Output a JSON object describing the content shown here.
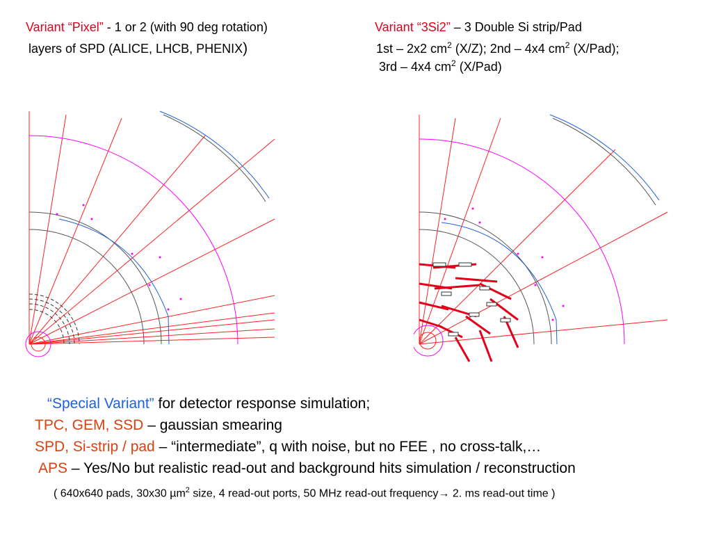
{
  "left_title": {
    "variant": "Variant “Pixel”",
    "rest": " - 1 or 2 (with 90 deg rotation)",
    "line2": "layers of SPD (ALICE, LHCB, PHENIX",
    "line2_end": ")"
  },
  "right_title": {
    "variant": "Variant “3Si2”",
    "rest": " – 3 Double Si strip/Pad",
    "line2a": "1st – 2x2 cm",
    "sup": "2",
    "line2b": " (X/Z);  2nd – 4x4 cm",
    "line2c": " (X/Pad);",
    "line3a": "3rd – 4x4 cm",
    "line3b": " (X/Pad)"
  },
  "bottom": {
    "l1_colored": "“Special Variant”",
    "l1_rest": " for detector response simulation;",
    "l2_colored": "TPC, GEM, SSD",
    "l2_rest": " – gaussian smearing",
    "l3_colored": "SPD, Si-strip / pad",
    "l3_rest": " – “intermediate”, q with noise, but no FEE , no cross-talk,…",
    "l4_colored": "APS",
    "l4_rest": " – Yes/No but realistic read-out and background hits simulation / reconstruction",
    "l5_a": "( 640x640 pads, 30x30 µm",
    "l5_sup": "2",
    "l5_b": " size, 4 read-out ports, 50 MHz read-out frequency",
    "l5_arrow": "→",
    "l5_c": " 2. ms read-out time )"
  },
  "colors": {
    "red": "#e3001b",
    "blue": "#1f5fd8",
    "orange": "#d9410f",
    "magenta": "#ff00ff",
    "dark_gray": "#555555"
  },
  "figures": {
    "left": "detector-quadrant-pixel",
    "right": "detector-quadrant-3si2"
  }
}
